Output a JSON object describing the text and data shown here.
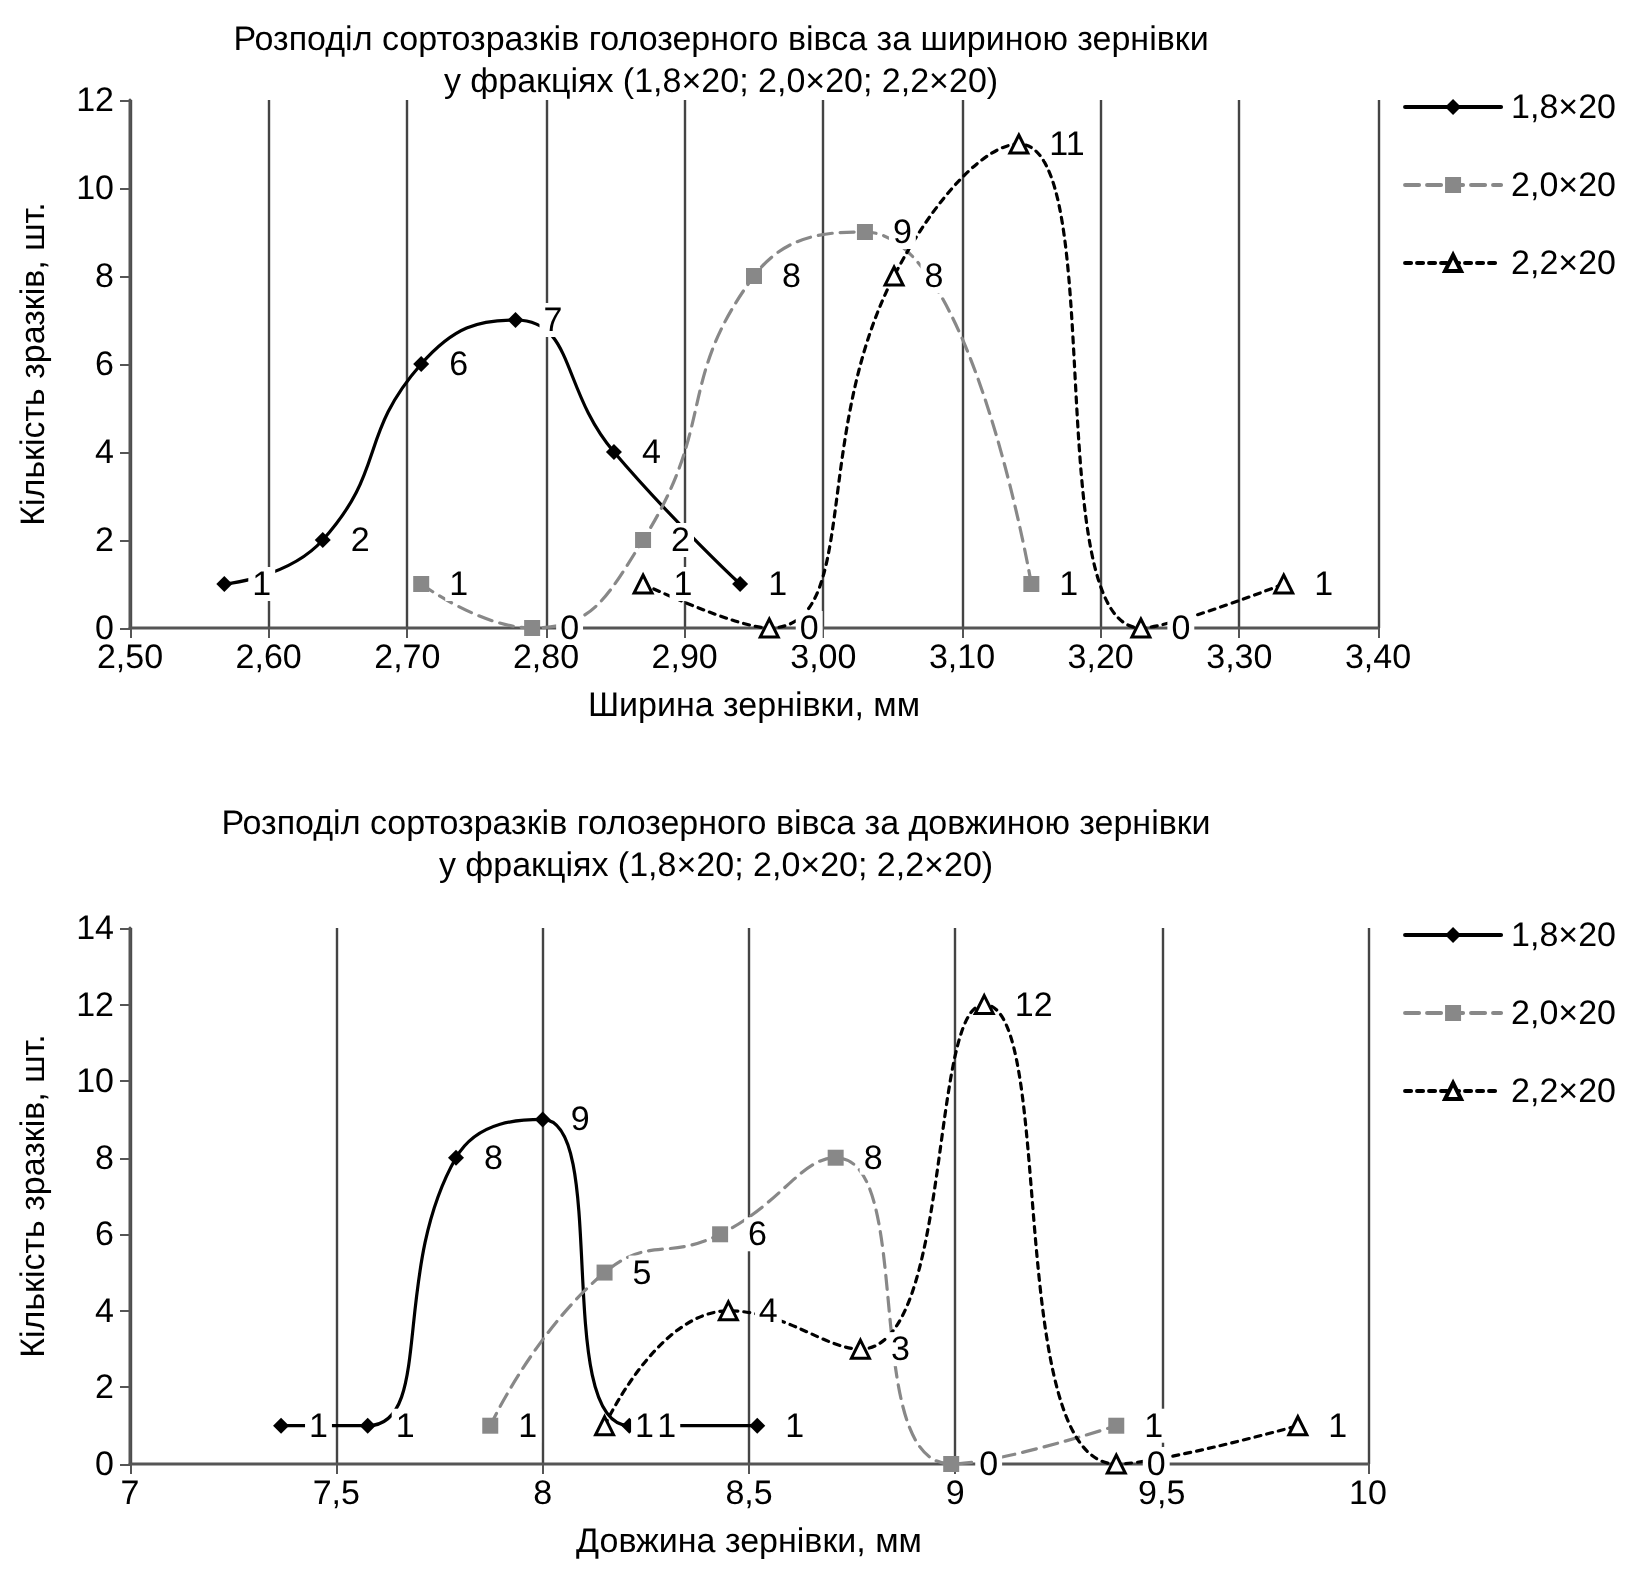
{
  "chart_data": [
    {
      "type": "line",
      "title": "Розподіл сортозразків голозерного вівса за шириною зернівки\nу фракціях (1,8×20; 2,0×20; 2,2×20)",
      "xlabel": "Ширина зернівки, мм",
      "ylabel": "Кількість зразків, шт.",
      "xlim": [
        2.5,
        3.4
      ],
      "xticks": [
        {
          "value": 2.5,
          "label": "2,50"
        },
        {
          "value": 2.6,
          "label": "2,60"
        },
        {
          "value": 2.7,
          "label": "2,70"
        },
        {
          "value": 2.8,
          "label": "2,80"
        },
        {
          "value": 2.9,
          "label": "2,90"
        },
        {
          "value": 3.0,
          "label": "3,00"
        },
        {
          "value": 3.1,
          "label": "3,10"
        },
        {
          "value": 3.2,
          "label": "3,20"
        },
        {
          "value": 3.3,
          "label": "3,30"
        },
        {
          "value": 3.4,
          "label": "3,40"
        }
      ],
      "ylim": [
        0,
        12
      ],
      "yticks": [
        0,
        2,
        4,
        6,
        8,
        10,
        12
      ],
      "grid": "x",
      "legend": "right",
      "data_labels": true,
      "series": [
        {
          "name": "1,8×20",
          "color": "#000000",
          "marker": "diamond",
          "line_style": "solid",
          "x": [
            2.568,
            2.639,
            2.71,
            2.778,
            2.849,
            2.94
          ],
          "values": [
            1,
            2,
            6,
            7,
            4,
            1
          ]
        },
        {
          "name": "2,0×20",
          "color": "#888888",
          "marker": "square",
          "line_style": "dashed",
          "x": [
            2.71,
            2.79,
            2.87,
            2.95,
            3.03,
            3.15
          ],
          "values": [
            1,
            0,
            2,
            8,
            9,
            1
          ]
        },
        {
          "name": "2,2×20",
          "color": "#000000",
          "marker": "triangle",
          "line_style": "dotted",
          "x": [
            2.87,
            2.961,
            3.051,
            3.141,
            3.229,
            3.332
          ],
          "values": [
            1,
            0,
            8,
            11,
            0,
            1
          ]
        }
      ]
    },
    {
      "type": "line",
      "title": "Розподіл сортозразків голозерного вівса за довжиною зернівки\nу фракціях (1,8×20; 2,0×20; 2,2×20)",
      "xlabel": "Довжина зернівки, мм",
      "ylabel": "Кількість зразків, шт.",
      "xlim": [
        7,
        10
      ],
      "xticks": [
        7,
        {
          "value": 7.5,
          "label": "7,5"
        },
        8,
        {
          "value": 8.5,
          "label": "8,5"
        },
        9,
        {
          "value": 9.5,
          "label": "9,5"
        },
        10
      ],
      "ylim": [
        0,
        14
      ],
      "yticks": [
        0,
        2,
        4,
        6,
        8,
        10,
        12,
        14
      ],
      "grid": "x",
      "legend": "right",
      "data_labels": true,
      "series": [
        {
          "name": "1,8×20",
          "color": "#000000",
          "marker": "diamond",
          "line_style": "solid",
          "x": [
            7.366,
            7.576,
            7.79,
            8.0,
            8.21,
            8.52
          ],
          "values": [
            1,
            1,
            8,
            9,
            1,
            1
          ]
        },
        {
          "name": "2,0×20",
          "color": "#888888",
          "marker": "square",
          "line_style": "dashed",
          "x": [
            7.873,
            8.15,
            8.43,
            8.71,
            8.99,
            9.39
          ],
          "values": [
            1,
            5,
            6,
            8,
            0,
            1
          ]
        },
        {
          "name": "2,2×20",
          "color": "#000000",
          "marker": "triangle",
          "line_style": "dotted",
          "x": [
            8.15,
            8.45,
            8.77,
            9.07,
            9.39,
            9.83
          ],
          "values": [
            1,
            4,
            3,
            12,
            0,
            1
          ]
        }
      ]
    }
  ]
}
